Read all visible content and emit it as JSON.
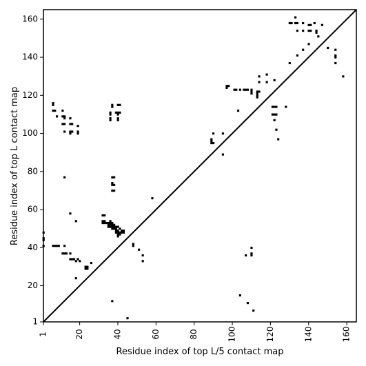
{
  "chart_data": {
    "type": "scatter",
    "title": "",
    "xlabel": "Residue index of top L/5 contact map",
    "ylabel": "Residue index of top L contact map",
    "xlim": [
      1,
      165
    ],
    "ylim": [
      1,
      165
    ],
    "xticks": [
      "1",
      "20",
      "40",
      "60",
      "80",
      "100",
      "120",
      "140",
      "160"
    ],
    "yticks": [
      "1",
      "20",
      "40",
      "60",
      "80",
      "100",
      "120",
      "140",
      "160"
    ],
    "grid": false,
    "diagonal": true,
    "marker_color": "#000000",
    "upper_triangle": [
      [
        130,
        158
      ],
      [
        131,
        158
      ],
      [
        133,
        158
      ],
      [
        134,
        158
      ],
      [
        137,
        158
      ],
      [
        140,
        157
      ],
      [
        141,
        157
      ],
      [
        143,
        158
      ],
      [
        147,
        157
      ],
      [
        133,
        161
      ],
      [
        134,
        154
      ],
      [
        137,
        154
      ],
      [
        140,
        154
      ],
      [
        141,
        154
      ],
      [
        144,
        154
      ],
      [
        144,
        153
      ],
      [
        145,
        151
      ],
      [
        134,
        141
      ],
      [
        137,
        144
      ],
      [
        140,
        147
      ],
      [
        130,
        137
      ],
      [
        150,
        145
      ],
      [
        154,
        144
      ],
      [
        154,
        141
      ],
      [
        154,
        140
      ],
      [
        154,
        137
      ],
      [
        158,
        130
      ],
      [
        97,
        125
      ],
      [
        97,
        124
      ],
      [
        98,
        125
      ],
      [
        101,
        123
      ],
      [
        102,
        123
      ],
      [
        104,
        123
      ],
      [
        106,
        123
      ],
      [
        107,
        123
      ],
      [
        108,
        123
      ],
      [
        110,
        123
      ],
      [
        110,
        122
      ],
      [
        110,
        121
      ],
      [
        113,
        122
      ],
      [
        113,
        121
      ],
      [
        113,
        120
      ],
      [
        113,
        119
      ],
      [
        114,
        122
      ],
      [
        114,
        127
      ],
      [
        114,
        130
      ],
      [
        118,
        131
      ],
      [
        118,
        127
      ],
      [
        122,
        128
      ],
      [
        103,
        112
      ],
      [
        90,
        100
      ],
      [
        89,
        97
      ],
      [
        89,
        96
      ],
      [
        89,
        95
      ],
      [
        90,
        95
      ],
      [
        95,
        100
      ],
      [
        95,
        89
      ],
      [
        121,
        114
      ],
      [
        122,
        114
      ],
      [
        123,
        114
      ],
      [
        121,
        110
      ],
      [
        122,
        110
      ],
      [
        123,
        110
      ],
      [
        122,
        107
      ],
      [
        123,
        102
      ],
      [
        124,
        97
      ],
      [
        128,
        114
      ]
    ],
    "lower_triangle": [
      [
        6,
        116
      ],
      [
        6,
        115
      ],
      [
        6,
        112
      ],
      [
        7,
        112
      ],
      [
        8,
        109
      ],
      [
        11,
        112
      ],
      [
        11,
        109
      ],
      [
        12,
        109
      ],
      [
        12,
        108
      ],
      [
        15,
        108
      ],
      [
        11,
        105
      ],
      [
        12,
        105
      ],
      [
        15,
        105
      ],
      [
        16,
        105
      ],
      [
        12,
        101
      ],
      [
        15,
        101
      ],
      [
        15,
        100
      ],
      [
        16,
        101
      ],
      [
        19,
        101
      ],
      [
        19,
        100
      ],
      [
        19,
        104
      ],
      [
        36,
        111
      ],
      [
        36,
        110
      ],
      [
        36,
        108
      ],
      [
        36,
        107
      ],
      [
        37,
        115
      ],
      [
        37,
        114
      ],
      [
        39,
        111
      ],
      [
        40,
        111
      ],
      [
        40,
        110
      ],
      [
        40,
        108
      ],
      [
        40,
        107
      ],
      [
        40,
        115
      ],
      [
        41,
        115
      ],
      [
        41,
        111
      ],
      [
        37,
        77
      ],
      [
        38,
        77
      ],
      [
        37,
        74
      ],
      [
        37,
        73
      ],
      [
        38,
        73
      ],
      [
        37,
        70
      ],
      [
        38,
        70
      ],
      [
        12,
        77
      ],
      [
        15,
        58
      ],
      [
        18,
        54
      ],
      [
        58,
        66
      ],
      [
        32,
        57
      ],
      [
        33,
        57
      ],
      [
        32,
        54
      ],
      [
        32,
        53
      ],
      [
        33,
        54
      ],
      [
        33,
        53
      ],
      [
        34,
        53
      ],
      [
        35,
        53
      ],
      [
        35,
        52
      ],
      [
        36,
        52
      ],
      [
        36,
        51
      ],
      [
        37,
        51
      ],
      [
        37,
        50
      ],
      [
        38,
        50
      ],
      [
        39,
        50
      ],
      [
        39,
        49
      ],
      [
        40,
        49
      ],
      [
        40,
        48
      ],
      [
        41,
        48
      ],
      [
        41,
        47
      ],
      [
        42,
        49
      ],
      [
        43,
        49
      ],
      [
        38,
        52
      ],
      [
        39,
        51
      ],
      [
        40,
        51
      ],
      [
        41,
        50
      ],
      [
        36,
        53
      ],
      [
        37,
        53
      ],
      [
        36,
        54
      ],
      [
        35,
        51
      ],
      [
        37,
        52
      ],
      [
        38,
        51
      ],
      [
        39,
        48
      ],
      [
        40,
        47
      ],
      [
        42,
        48
      ],
      [
        43,
        48
      ],
      [
        40,
        46
      ],
      [
        1,
        48
      ],
      [
        1,
        45
      ],
      [
        1,
        44
      ],
      [
        1,
        41
      ],
      [
        6,
        41
      ],
      [
        7,
        41
      ],
      [
        8,
        41
      ],
      [
        9,
        41
      ],
      [
        12,
        41
      ],
      [
        11,
        37
      ],
      [
        12,
        37
      ],
      [
        13,
        37
      ],
      [
        15,
        37
      ],
      [
        15,
        34
      ],
      [
        16,
        34
      ],
      [
        17,
        34
      ],
      [
        19,
        34
      ],
      [
        18,
        33
      ],
      [
        20,
        33
      ],
      [
        23,
        30
      ],
      [
        24,
        30
      ],
      [
        23,
        29
      ],
      [
        24,
        29
      ],
      [
        26,
        32
      ],
      [
        18,
        24
      ],
      [
        48,
        42
      ],
      [
        48,
        41
      ],
      [
        51,
        39
      ],
      [
        53,
        36
      ],
      [
        53,
        33
      ],
      [
        37,
        12
      ],
      [
        45,
        3
      ],
      [
        104,
        15
      ],
      [
        107,
        36
      ],
      [
        110,
        40
      ],
      [
        110,
        37
      ],
      [
        110,
        36
      ],
      [
        108,
        11
      ],
      [
        111,
        7
      ]
    ]
  }
}
